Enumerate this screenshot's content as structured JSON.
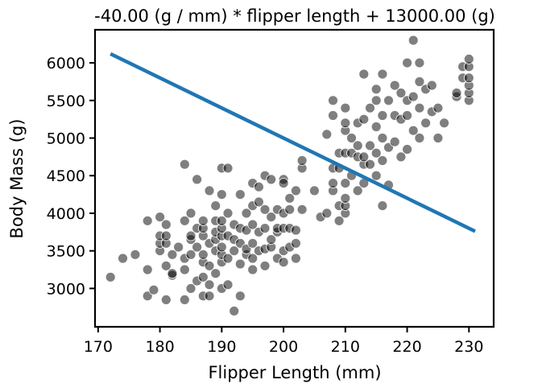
{
  "chart_data": {
    "type": "scatter",
    "title": "-40.00 (g / mm) * flipper length + 13000.00 (g)",
    "xlabel": "Flipper Length (mm)",
    "ylabel": "Body Mass (g)",
    "xlim": [
      169.5,
      234
    ],
    "ylim": [
      2490,
      6440
    ],
    "xticks": [
      170,
      180,
      190,
      200,
      210,
      220,
      230
    ],
    "yticks": [
      3000,
      3500,
      4000,
      4500,
      5000,
      5500,
      6000
    ],
    "grid": false,
    "legend": "none",
    "colors": {
      "points": "#000000",
      "line": "#1f77b4",
      "axes": "#000000"
    },
    "series": [
      {
        "type": "scatter",
        "points": [
          [
            172,
            3150
          ],
          [
            174,
            3400
          ],
          [
            176,
            3450
          ],
          [
            178,
            2900
          ],
          [
            178,
            3250
          ],
          [
            178,
            3900
          ],
          [
            179,
            2980
          ],
          [
            180,
            3500
          ],
          [
            180,
            3600
          ],
          [
            180,
            3700
          ],
          [
            180,
            3950
          ],
          [
            181,
            2850
          ],
          [
            181,
            3300
          ],
          [
            181,
            3600
          ],
          [
            181,
            3700
          ],
          [
            181,
            3850
          ],
          [
            182,
            3175
          ],
          [
            182,
            3200
          ],
          [
            182,
            3450
          ],
          [
            183,
            3550
          ],
          [
            184,
            2850
          ],
          [
            184,
            3250
          ],
          [
            184,
            3400
          ],
          [
            184,
            3900
          ],
          [
            184,
            4650
          ],
          [
            185,
            3000
          ],
          [
            185,
            3450
          ],
          [
            185,
            3650
          ],
          [
            185,
            3700
          ],
          [
            185,
            4000
          ],
          [
            186,
            3100
          ],
          [
            186,
            3550
          ],
          [
            186,
            3800
          ],
          [
            186,
            4450
          ],
          [
            187,
            2900
          ],
          [
            187,
            3150
          ],
          [
            187,
            3350
          ],
          [
            187,
            3450
          ],
          [
            187,
            3700
          ],
          [
            187,
            3800
          ],
          [
            187,
            3900
          ],
          [
            188,
            2900
          ],
          [
            188,
            3050
          ],
          [
            188,
            3300
          ],
          [
            188,
            3600
          ],
          [
            188,
            4300
          ],
          [
            189,
            3200
          ],
          [
            189,
            3500
          ],
          [
            189,
            3650
          ],
          [
            189,
            3900
          ],
          [
            189,
            4100
          ],
          [
            189,
            3750
          ],
          [
            190,
            3000
          ],
          [
            190,
            3350
          ],
          [
            190,
            3450
          ],
          [
            190,
            3550
          ],
          [
            190,
            3700
          ],
          [
            190,
            3800
          ],
          [
            190,
            3900
          ],
          [
            190,
            4250
          ],
          [
            190,
            4600
          ],
          [
            191,
            3050
          ],
          [
            191,
            3400
          ],
          [
            191,
            3700
          ],
          [
            191,
            4000
          ],
          [
            191,
            4600
          ],
          [
            192,
            2700
          ],
          [
            192,
            3500
          ],
          [
            192,
            3650
          ],
          [
            192,
            3850
          ],
          [
            193,
            2900
          ],
          [
            193,
            3325
          ],
          [
            193,
            3600
          ],
          [
            193,
            3800
          ],
          [
            193,
            4250
          ],
          [
            194,
            3450
          ],
          [
            194,
            3525
          ],
          [
            194,
            3775
          ],
          [
            194,
            4000
          ],
          [
            195,
            3250
          ],
          [
            195,
            3400
          ],
          [
            195,
            3600
          ],
          [
            195,
            3850
          ],
          [
            195,
            4100
          ],
          [
            195,
            4400
          ],
          [
            196,
            3500
          ],
          [
            196,
            3750
          ],
          [
            196,
            4150
          ],
          [
            196,
            4350
          ],
          [
            197,
            3300
          ],
          [
            197,
            3525
          ],
          [
            197,
            3800
          ],
          [
            197,
            4050
          ],
          [
            197,
            4500
          ],
          [
            198,
            3550
          ],
          [
            198,
            3650
          ],
          [
            198,
            3950
          ],
          [
            198,
            4450
          ],
          [
            199,
            3400
          ],
          [
            199,
            3750
          ],
          [
            199,
            3800
          ],
          [
            199,
            4050
          ],
          [
            200,
            3350
          ],
          [
            200,
            3500
          ],
          [
            200,
            3800
          ],
          [
            200,
            4000
          ],
          [
            200,
            4450
          ],
          [
            200,
            4400
          ],
          [
            201,
            3550
          ],
          [
            201,
            3800
          ],
          [
            201,
            4050
          ],
          [
            201,
            4200
          ],
          [
            202,
            3400
          ],
          [
            202,
            3600
          ],
          [
            202,
            3775
          ],
          [
            202,
            4300
          ],
          [
            203,
            4050
          ],
          [
            203,
            4600
          ],
          [
            203,
            4700
          ],
          [
            205,
            4300
          ],
          [
            206,
            3950
          ],
          [
            207,
            4000
          ],
          [
            207,
            5050
          ],
          [
            208,
            4300
          ],
          [
            208,
            4400
          ],
          [
            208,
            4600
          ],
          [
            208,
            5300
          ],
          [
            208,
            5500
          ],
          [
            209,
            3900
          ],
          [
            209,
            4100
          ],
          [
            209,
            4600
          ],
          [
            209,
            4800
          ],
          [
            210,
            4000
          ],
          [
            210,
            4100
          ],
          [
            210,
            4200
          ],
          [
            210,
            4400
          ],
          [
            210,
            4800
          ],
          [
            210,
            5100
          ],
          [
            210,
            5200
          ],
          [
            210,
            5400
          ],
          [
            211,
            4500
          ],
          [
            211,
            4800
          ],
          [
            211,
            5000
          ],
          [
            212,
            4300
          ],
          [
            212,
            4750
          ],
          [
            212,
            4900
          ],
          [
            212,
            5200
          ],
          [
            213,
            4400
          ],
          [
            213,
            4650
          ],
          [
            213,
            4750
          ],
          [
            213,
            5250
          ],
          [
            213,
            5850
          ],
          [
            214,
            4650
          ],
          [
            214,
            4900
          ],
          [
            214,
            5400
          ],
          [
            215,
            4500
          ],
          [
            215,
            4800
          ],
          [
            215,
            5150
          ],
          [
            215,
            5500
          ],
          [
            215,
            5650
          ],
          [
            216,
            4100
          ],
          [
            216,
            4700
          ],
          [
            216,
            5000
          ],
          [
            216,
            5300
          ],
          [
            216,
            5850
          ],
          [
            217,
            4375
          ],
          [
            217,
            4875
          ],
          [
            217,
            5500
          ],
          [
            218,
            4950
          ],
          [
            218,
            5300
          ],
          [
            218,
            5700
          ],
          [
            219,
            4750
          ],
          [
            219,
            5250
          ],
          [
            219,
            5600
          ],
          [
            220,
            4850
          ],
          [
            220,
            5300
          ],
          [
            220,
            5500
          ],
          [
            220,
            6000
          ],
          [
            221,
            5100
          ],
          [
            221,
            5550
          ],
          [
            221,
            6300
          ],
          [
            222,
            5000
          ],
          [
            222,
            5400
          ],
          [
            222,
            5750
          ],
          [
            222,
            6000
          ],
          [
            223,
            5200
          ],
          [
            223,
            5650
          ],
          [
            224,
            5350
          ],
          [
            224,
            5700
          ],
          [
            225,
            5000
          ],
          [
            225,
            5400
          ],
          [
            226,
            5200
          ],
          [
            228,
            5550
          ],
          [
            228,
            5600
          ],
          [
            229,
            5800
          ],
          [
            229,
            5950
          ],
          [
            230,
            5500
          ],
          [
            230,
            5600
          ],
          [
            230,
            5700
          ],
          [
            230,
            5800
          ],
          [
            230,
            5950
          ],
          [
            230,
            6050
          ]
        ]
      },
      {
        "type": "line",
        "slope": -40,
        "intercept": 13000,
        "x": [
          172,
          231
        ]
      }
    ]
  }
}
